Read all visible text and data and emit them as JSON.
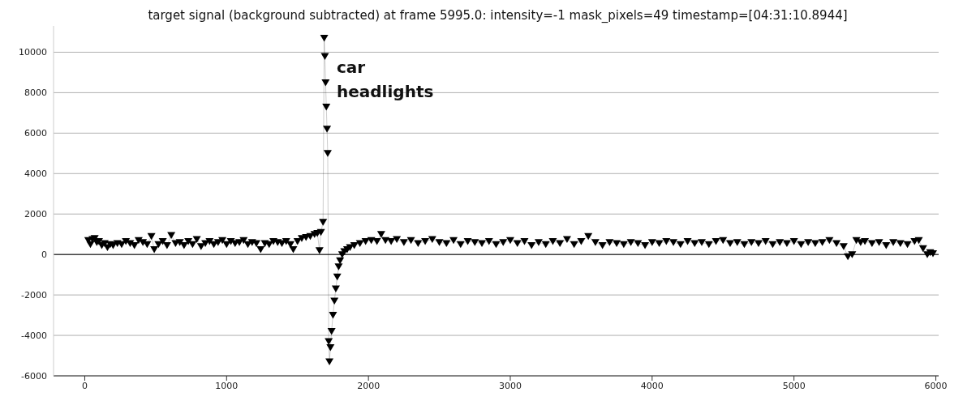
{
  "chart_data": {
    "type": "line",
    "title": "target signal (background subtracted) at frame 5995.0: intensity=-1 mask_pixels=49 timestamp=[04:31:10.8944]",
    "annotations": [
      "car\nheadlights"
    ],
    "x": [
      25,
      40,
      55,
      70,
      85,
      100,
      120,
      140,
      160,
      180,
      200,
      230,
      260,
      290,
      320,
      350,
      380,
      410,
      440,
      470,
      490,
      520,
      550,
      580,
      610,
      640,
      670,
      700,
      730,
      760,
      790,
      820,
      850,
      880,
      910,
      940,
      970,
      1000,
      1030,
      1060,
      1090,
      1120,
      1150,
      1180,
      1210,
      1240,
      1270,
      1300,
      1330,
      1360,
      1390,
      1420,
      1450,
      1470,
      1500,
      1530,
      1560,
      1590,
      1620,
      1640,
      1655,
      1665,
      1680,
      1688,
      1693,
      1698,
      1703,
      1708,
      1713,
      1720,
      1725,
      1732,
      1740,
      1750,
      1760,
      1770,
      1780,
      1790,
      1800,
      1815,
      1830,
      1850,
      1870,
      1900,
      1940,
      1980,
      2020,
      2060,
      2090,
      2120,
      2160,
      2200,
      2250,
      2300,
      2350,
      2400,
      2450,
      2500,
      2550,
      2600,
      2650,
      2700,
      2750,
      2800,
      2850,
      2900,
      2950,
      3000,
      3050,
      3100,
      3150,
      3200,
      3250,
      3300,
      3350,
      3400,
      3450,
      3500,
      3550,
      3600,
      3650,
      3700,
      3750,
      3800,
      3850,
      3900,
      3950,
      4000,
      4050,
      4100,
      4150,
      4200,
      4250,
      4300,
      4350,
      4400,
      4450,
      4500,
      4550,
      4600,
      4650,
      4700,
      4750,
      4800,
      4850,
      4900,
      4950,
      5000,
      5050,
      5100,
      5150,
      5200,
      5250,
      5300,
      5350,
      5380,
      5410,
      5440,
      5470,
      5500,
      5550,
      5600,
      5650,
      5700,
      5750,
      5800,
      5850,
      5880,
      5910,
      5940,
      5960,
      5980
    ],
    "series": [
      {
        "color": "#000000",
        "values": [
          700,
          500,
          750,
          800,
          600,
          650,
          450,
          550,
          350,
          500,
          450,
          550,
          500,
          650,
          550,
          450,
          700,
          600,
          500,
          900,
          250,
          500,
          650,
          450,
          950,
          550,
          600,
          450,
          650,
          500,
          750,
          400,
          550,
          650,
          500,
          600,
          700,
          500,
          650,
          550,
          600,
          700,
          500,
          600,
          550,
          250,
          550,
          500,
          650,
          600,
          550,
          650,
          500,
          250,
          650,
          800,
          850,
          900,
          1000,
          1050,
          200,
          1100,
          1600,
          10700,
          9800,
          8500,
          7300,
          6200,
          5000,
          -4300,
          -5300,
          -4600,
          -3800,
          -3000,
          -2300,
          -1700,
          -1100,
          -600,
          -300,
          0,
          150,
          250,
          350,
          450,
          550,
          650,
          700,
          650,
          1000,
          700,
          650,
          750,
          600,
          700,
          550,
          650,
          750,
          600,
          550,
          700,
          500,
          650,
          600,
          550,
          650,
          500,
          600,
          700,
          550,
          650,
          450,
          600,
          500,
          650,
          550,
          750,
          500,
          650,
          900,
          600,
          450,
          600,
          550,
          500,
          600,
          550,
          450,
          600,
          550,
          650,
          600,
          500,
          650,
          550,
          600,
          500,
          650,
          700,
          550,
          600,
          500,
          600,
          550,
          650,
          500,
          600,
          550,
          650,
          500,
          600,
          550,
          600,
          700,
          550,
          400,
          -100,
          0,
          700,
          600,
          650,
          550,
          600,
          450,
          600,
          550,
          500,
          650,
          700,
          300,
          0,
          100,
          50
        ]
      }
    ],
    "xlim": [
      -220,
      6020
    ],
    "xticks": [
      0,
      1000,
      2000,
      3000,
      4000,
      5000,
      6000
    ],
    "ylim": [
      -6000,
      11300
    ],
    "yticks": [
      -6000,
      -4000,
      -2000,
      0,
      2000,
      4000,
      6000,
      8000,
      10000
    ],
    "ref_lines": [
      {
        "axis": "y",
        "value": 0,
        "color": "#000000"
      }
    ],
    "grid": "y",
    "marker": "triangle",
    "line_style": "solid"
  }
}
